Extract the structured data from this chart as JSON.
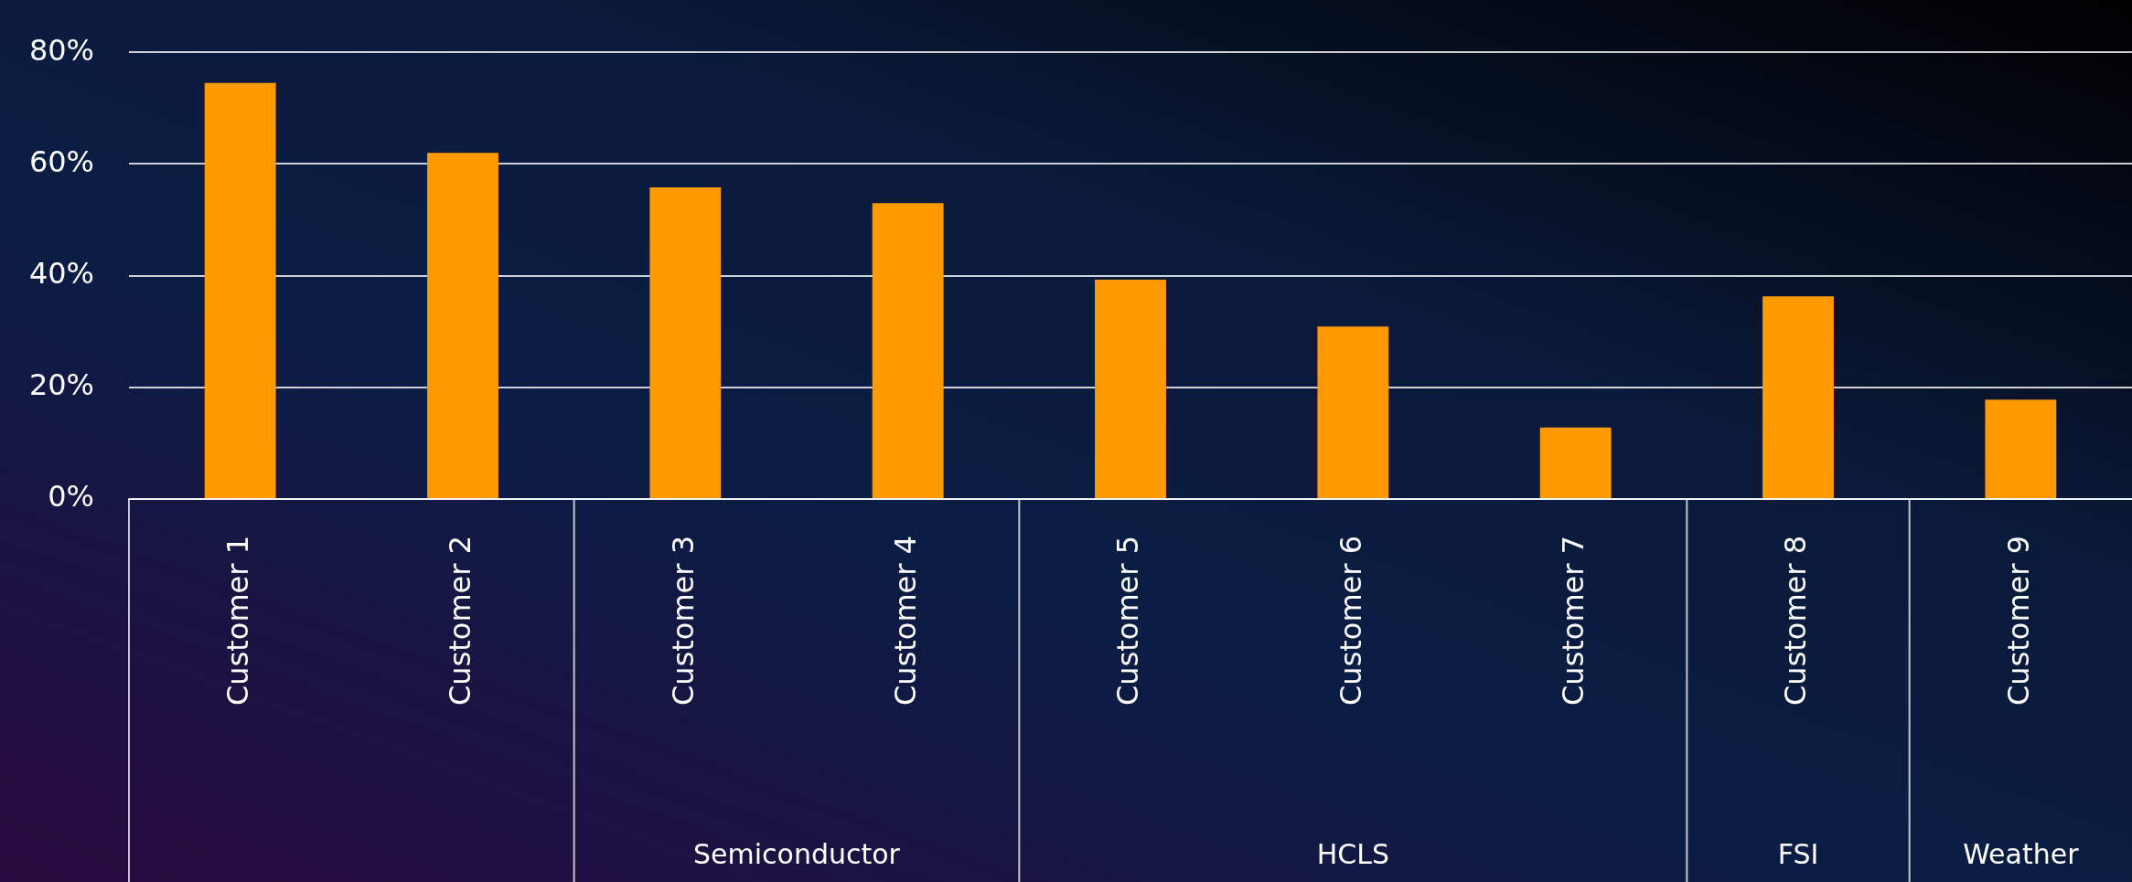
{
  "chart_data": {
    "type": "bar",
    "categories": [
      "Customer 1",
      "Customer 2",
      "Customer 3",
      "Customer 4",
      "Customer 5",
      "Customer 6",
      "Customer 7",
      "Customer 8",
      "Customer 9"
    ],
    "values": [
      74.5,
      62,
      55.8,
      53,
      39.3,
      30.9,
      12.8,
      36.3,
      17.8
    ],
    "color": "#ff9900",
    "ylim": [
      0,
      80
    ],
    "yticks": [
      {
        "value": 0,
        "label": "0%"
      },
      {
        "value": 20,
        "label": "20%"
      },
      {
        "value": 40,
        "label": "40%"
      },
      {
        "value": 60,
        "label": "60%"
      },
      {
        "value": 80,
        "label": "80%"
      }
    ],
    "grid": "y",
    "legend": false,
    "annotations": [
      "Semiconductor",
      "HCLS",
      "FSI",
      "Weather"
    ]
  }
}
